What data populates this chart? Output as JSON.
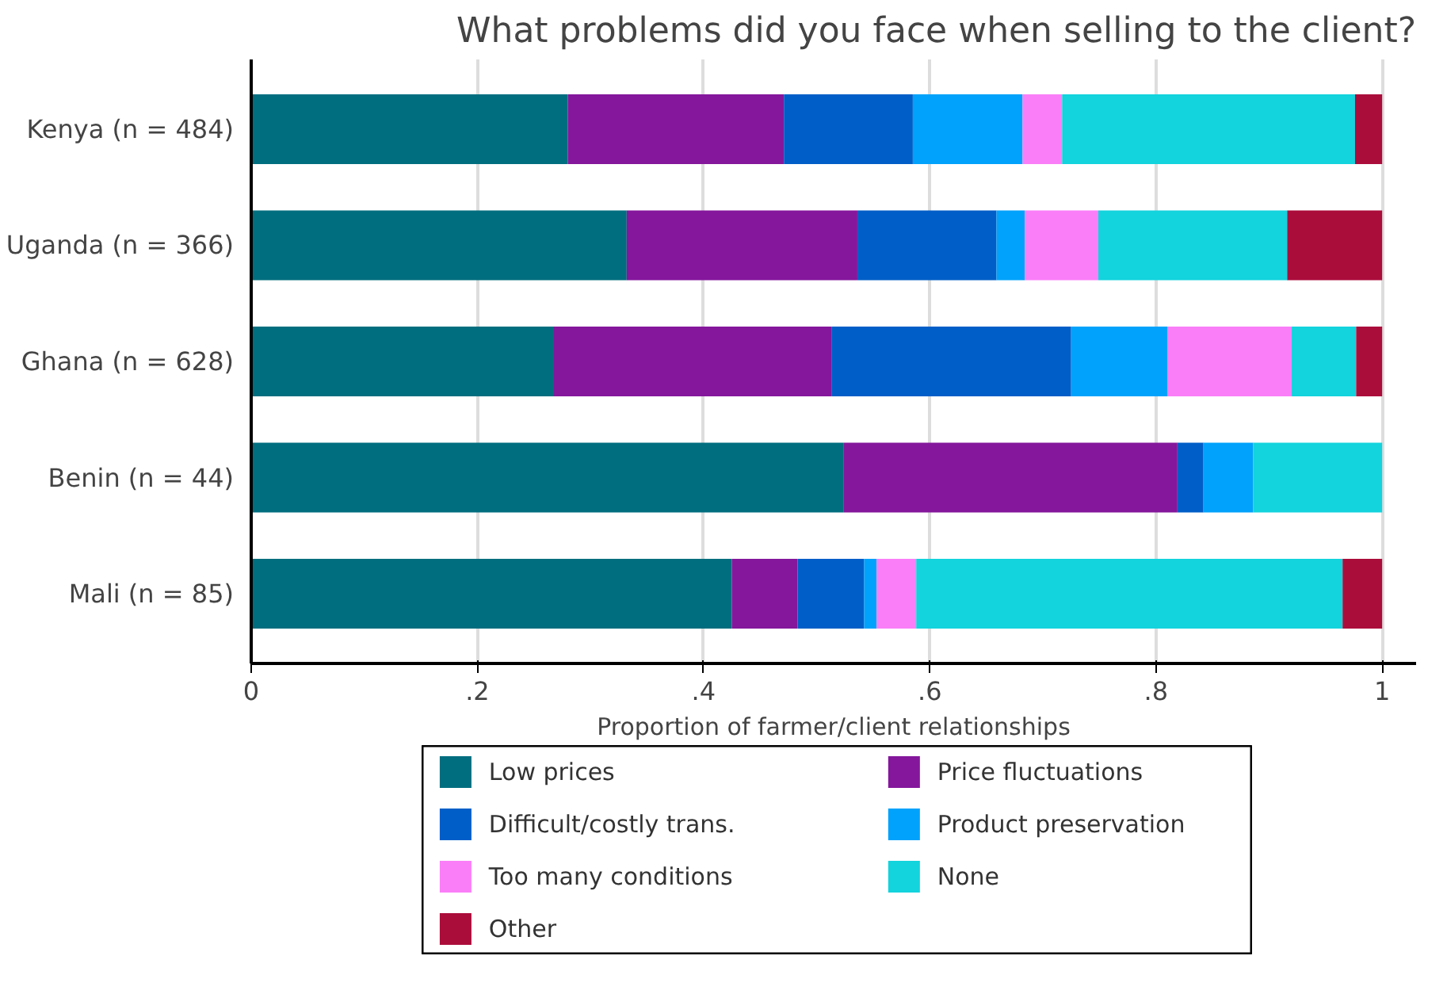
{
  "chart_data": {
    "type": "bar",
    "orientation": "horizontal",
    "stacked": true,
    "title": "What problems did you face when selling to the client?",
    "xlabel": "Proportion of farmer/client relationships",
    "categories": [
      "Kenya (n = 484)",
      "Uganda (n = 366)",
      "Ghana (n = 628)",
      "Benin (n = 44)",
      "Mali (n = 85)"
    ],
    "series": [
      {
        "name": "Low prices",
        "color": "#006e7f",
        "values": [
          0.28,
          0.332,
          0.267,
          0.524,
          0.425
        ]
      },
      {
        "name": "Price fluctuations",
        "color": "#84179c",
        "values": [
          0.191,
          0.204,
          0.246,
          0.295,
          0.058
        ]
      },
      {
        "name": "Difficult/costly trans.",
        "color": "#005ec8",
        "values": [
          0.114,
          0.123,
          0.212,
          0.023,
          0.059
        ]
      },
      {
        "name": "Product preservation",
        "color": "#00a2fb",
        "values": [
          0.097,
          0.025,
          0.085,
          0.044,
          0.011
        ]
      },
      {
        "name": "Too many conditions",
        "color": "#fa7ef8",
        "values": [
          0.035,
          0.065,
          0.11,
          0,
          0.035
        ]
      },
      {
        "name": "None",
        "color": "#13d3dd",
        "values": [
          0.259,
          0.167,
          0.057,
          0.114,
          0.377
        ]
      },
      {
        "name": "Other",
        "color": "#ab0d3b",
        "values": [
          0.024,
          0.084,
          0.023,
          0,
          0.035
        ]
      }
    ],
    "xlim": [
      0,
      1.03
    ],
    "xticks": [
      0,
      {
        "value": 0.2,
        "label": ".2"
      },
      {
        "value": 0.4,
        "label": ".4"
      },
      {
        "value": 0.6,
        "label": ".6"
      },
      {
        "value": 0.8,
        "label": ".8"
      },
      1
    ],
    "grid": "x",
    "legend": "bottom"
  }
}
